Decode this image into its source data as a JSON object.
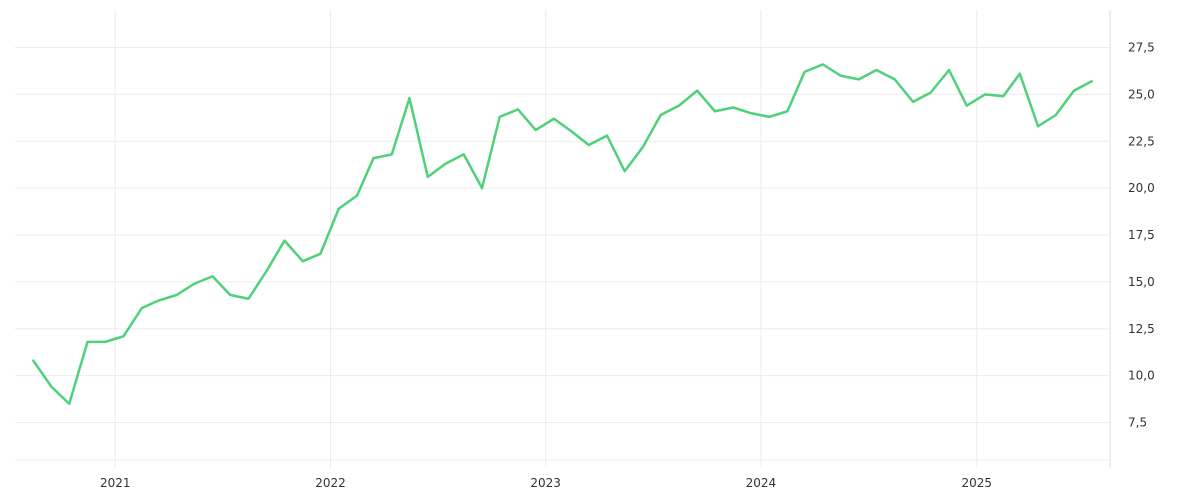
{
  "chart_data": {
    "type": "line",
    "title": "",
    "xlabel": "",
    "ylabel": "",
    "grid": true,
    "legend": "none",
    "y_axis_position": "right",
    "ylim": [
      5.5,
      29.5
    ],
    "y_ticks": [
      7.5,
      10,
      12.5,
      15,
      17.5,
      20,
      22.5,
      25,
      27.5
    ],
    "y_tick_labels": [
      "7,5",
      "10,0",
      "12,5",
      "15,0",
      "17,5",
      "20,0",
      "22,5",
      "25,0",
      "27,5"
    ],
    "xlim": [
      "2020-07-15",
      "2025-08-15"
    ],
    "x_ticks": [
      "2021-01-01",
      "2022-01-01",
      "2023-01-01",
      "2024-01-01",
      "2025-01-01"
    ],
    "x_tick_labels": [
      "2021",
      "2022",
      "2023",
      "2024",
      "2025"
    ],
    "series": [
      {
        "color": "#4fd17a",
        "x": [
          "2020-08",
          "2020-09",
          "2020-10",
          "2020-11",
          "2020-12",
          "2021-01",
          "2021-02",
          "2021-03",
          "2021-04",
          "2021-05",
          "2021-06",
          "2021-07",
          "2021-08",
          "2021-09",
          "2021-10",
          "2021-11",
          "2021-12",
          "2022-01",
          "2022-02",
          "2022-03",
          "2022-04",
          "2022-05",
          "2022-06",
          "2022-07",
          "2022-08",
          "2022-09",
          "2022-10",
          "2022-11",
          "2022-12",
          "2023-01",
          "2023-02",
          "2023-03",
          "2023-04",
          "2023-05",
          "2023-06",
          "2023-07",
          "2023-08",
          "2023-09",
          "2023-10",
          "2023-11",
          "2023-12",
          "2024-01",
          "2024-02",
          "2024-03",
          "2024-04",
          "2024-05",
          "2024-06",
          "2024-07",
          "2024-08",
          "2024-09",
          "2024-10",
          "2024-11",
          "2024-12",
          "2025-01",
          "2025-02",
          "2025-03",
          "2025-04",
          "2025-05",
          "2025-06",
          "2025-07"
        ],
        "values": [
          10.8,
          9.4,
          8.5,
          11.8,
          11.8,
          12.1,
          13.6,
          14.0,
          14.3,
          14.9,
          15.3,
          14.3,
          14.1,
          15.6,
          17.2,
          16.1,
          16.5,
          18.9,
          19.6,
          21.6,
          21.8,
          24.8,
          20.6,
          21.3,
          21.8,
          20.0,
          23.8,
          24.2,
          23.1,
          23.7,
          23.0,
          22.3,
          22.8,
          20.9,
          22.2,
          23.9,
          24.4,
          25.2,
          24.1,
          24.3,
          24.0,
          23.8,
          24.1,
          26.2,
          26.6,
          26.0,
          25.8,
          26.3,
          25.8,
          24.6,
          25.1,
          26.3,
          24.4,
          25.0,
          24.9,
          26.1,
          23.3,
          23.9,
          25.2,
          25.7
        ]
      }
    ]
  }
}
